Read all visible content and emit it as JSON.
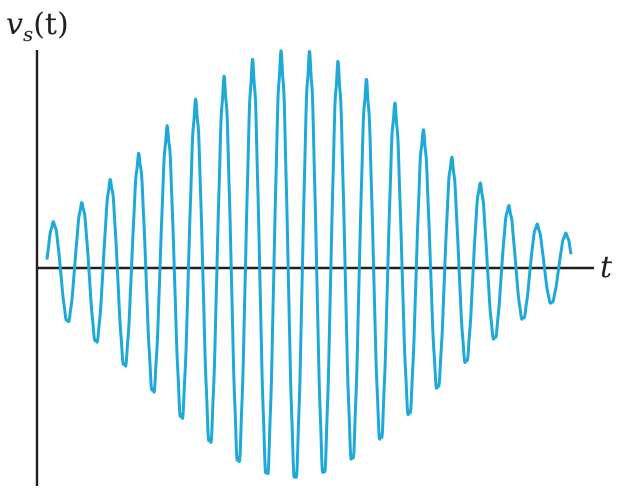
{
  "labels": {
    "y_axis": "v",
    "y_axis_sub": "s",
    "y_axis_arg": "(t)",
    "x_axis": "t"
  },
  "colors": {
    "axis": "#231f20",
    "waveform": "#1ea9d8"
  },
  "waveform": {
    "description_kind": "amplitude-modulated sinusoid",
    "carrier_cycles": 18.4,
    "envelope_shape": "raised-peak-centered",
    "peak_amplitude": 1.0,
    "start_amplitude": 0.14,
    "end_amplitude": 0.16,
    "ripple_relative": 0.03
  }
}
